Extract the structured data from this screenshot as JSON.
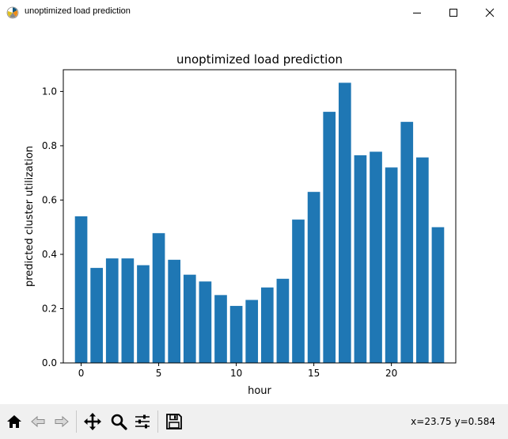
{
  "window": {
    "title": "unoptimized load prediction",
    "icon": "matplotlib-icon",
    "controls": [
      "minimize-icon",
      "maximize-icon",
      "close-icon"
    ]
  },
  "chart_data": {
    "type": "bar",
    "title": "unoptimized load prediction",
    "xlabel": "hour",
    "ylabel": "predicted cluster utilization",
    "x": [
      0,
      1,
      2,
      3,
      4,
      5,
      6,
      7,
      8,
      9,
      10,
      11,
      12,
      13,
      14,
      15,
      16,
      17,
      18,
      19,
      20,
      21,
      22,
      23
    ],
    "values": [
      0.54,
      0.35,
      0.385,
      0.385,
      0.36,
      0.478,
      0.38,
      0.325,
      0.3,
      0.25,
      0.21,
      0.232,
      0.278,
      0.31,
      0.528,
      0.63,
      0.925,
      1.032,
      0.765,
      0.778,
      0.72,
      0.888,
      0.757,
      0.5
    ],
    "xlim": [
      -1.15,
      24.15
    ],
    "ylim": [
      0,
      1.08
    ],
    "xticks": [
      0,
      5,
      10,
      15,
      20
    ],
    "yticks": [
      0.0,
      0.2,
      0.4,
      0.6,
      0.8,
      1.0
    ],
    "grid": false,
    "bar_color": "#1f77b4"
  },
  "toolbar": {
    "buttons": [
      "home-icon",
      "back-icon",
      "forward-icon",
      "pan-icon",
      "zoom-icon",
      "configure-subplots-icon",
      "save-icon"
    ],
    "coords": "x=23.75 y=0.584"
  }
}
